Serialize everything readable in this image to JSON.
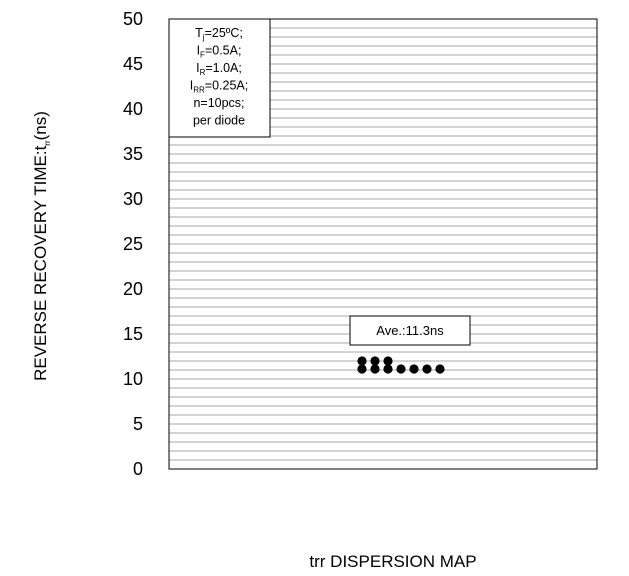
{
  "chart_data": {
    "type": "scatter",
    "title": "trr DISPERSION MAP",
    "ylabel": {
      "main": "REVERSE RECOVERY TIME:t",
      "sub": "rr",
      "unit": "(ns)"
    },
    "ylim": [
      0,
      50
    ],
    "yticks": [
      0,
      5,
      10,
      15,
      20,
      25,
      30,
      35,
      40,
      45,
      50
    ],
    "ytick_labels": [
      "0",
      "5",
      "10",
      "15",
      "20",
      "25",
      "30",
      "35",
      "40",
      "45",
      "50"
    ],
    "minor_grid_step": 1,
    "grid": true,
    "points": [
      {
        "col": 1,
        "y": 12
      },
      {
        "col": 2,
        "y": 12
      },
      {
        "col": 3,
        "y": 12
      },
      {
        "col": 1,
        "y": 11
      },
      {
        "col": 2,
        "y": 11
      },
      {
        "col": 3,
        "y": 11
      },
      {
        "col": 4,
        "y": 11
      },
      {
        "col": 5,
        "y": 11
      },
      {
        "col": 6,
        "y": 11
      },
      {
        "col": 7,
        "y": 11
      }
    ],
    "annotation": "Ave.:11.3ns",
    "legend": {
      "position": "top-left",
      "lines": [
        {
          "main": "T",
          "sub": "j",
          "rest": "=25ºC;"
        },
        {
          "main": "I",
          "sub": "F",
          "rest": "=0.5A;"
        },
        {
          "main": "I",
          "sub": "R",
          "rest": "=1.0A;"
        },
        {
          "main": "I",
          "sub": "RR",
          "rest": "=0.25A;"
        },
        {
          "main": "n=10pcs;",
          "sub": "",
          "rest": ""
        },
        {
          "main": "per diode",
          "sub": "",
          "rest": ""
        }
      ]
    }
  }
}
